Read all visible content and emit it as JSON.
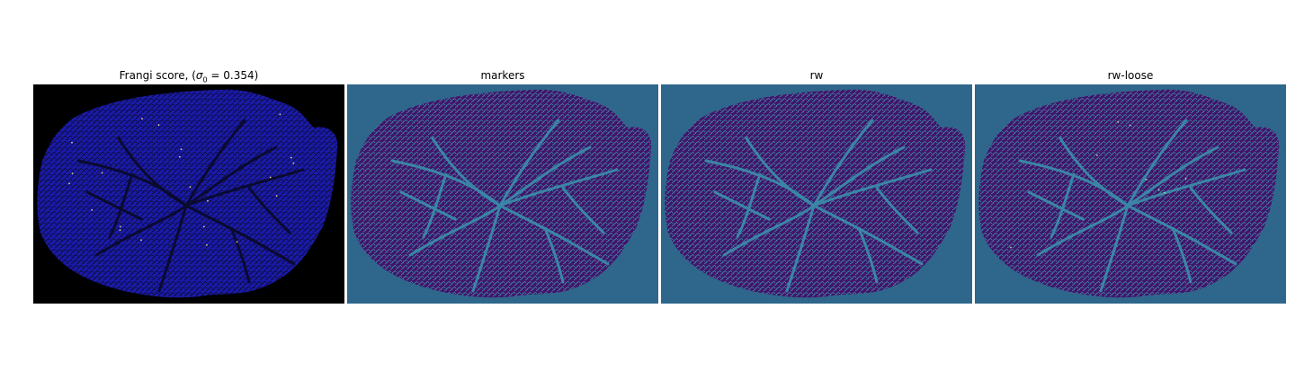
{
  "panels": [
    {
      "title_prefix": "Frangi score, (",
      "title_math": "σ",
      "title_sub": "0",
      "title_suffix": " = 0.354)",
      "background": "#000000",
      "tissue": "#1a1aa8",
      "vein": "#0a0a30",
      "highlight": "#e8d08a"
    },
    {
      "title": "markers",
      "background": "#2e678b",
      "tissue": "#43146a",
      "vein": "#3b85a6"
    },
    {
      "title": "rw",
      "background": "#2e678b",
      "tissue": "#43146a",
      "vein": "#3b85a6"
    },
    {
      "title": "rw-loose",
      "background": "#2e678b",
      "tissue": "#43146a",
      "vein": "#3b85a6",
      "highlight": "#a8e8a0"
    }
  ]
}
